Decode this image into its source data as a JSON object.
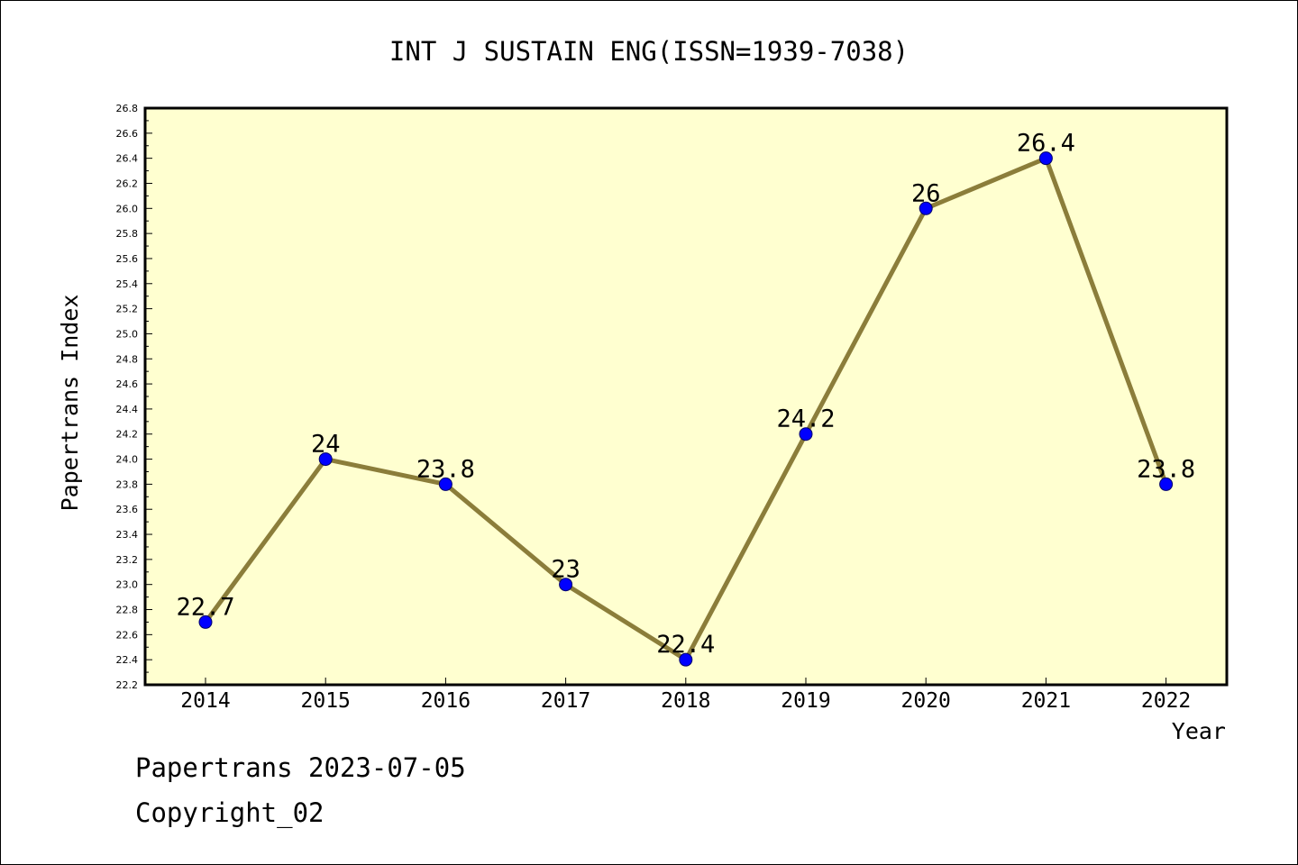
{
  "chart_data": {
    "type": "line",
    "title": "INT J SUSTAIN ENG(ISSN=1939-7038)",
    "xlabel": "Year",
    "ylabel": "Papertrans Index",
    "categories": [
      "2014",
      "2015",
      "2016",
      "2017",
      "2018",
      "2019",
      "2020",
      "2021",
      "2022"
    ],
    "values": [
      22.7,
      24,
      23.8,
      23,
      22.4,
      24.2,
      26,
      26.4,
      23.8
    ],
    "data_labels": [
      "22.7",
      "24",
      "23.8",
      "23",
      "22.4",
      "24.2",
      "26",
      "26.4",
      "23.8"
    ],
    "ylim": [
      22.2,
      26.8
    ],
    "ytick_step": 0.2,
    "ytick_labels": [
      "22.2",
      "22.4",
      "22.6",
      "22.8",
      "23.0",
      "23.2",
      "23.4",
      "23.6",
      "23.8",
      "24.0",
      "24.2",
      "24.4",
      "24.6",
      "24.8",
      "25.0",
      "25.2",
      "25.4",
      "25.6",
      "25.8",
      "26.0",
      "26.2",
      "26.4",
      "26.6",
      "26.8"
    ],
    "grid": false,
    "colors": {
      "plot_background": "#ffffd0",
      "line": "#8b7d3a",
      "marker": "#0000ff",
      "axis": "#000000"
    }
  },
  "footer": {
    "line1": "Papertrans 2023-07-05",
    "line2": "Copyright_02"
  }
}
